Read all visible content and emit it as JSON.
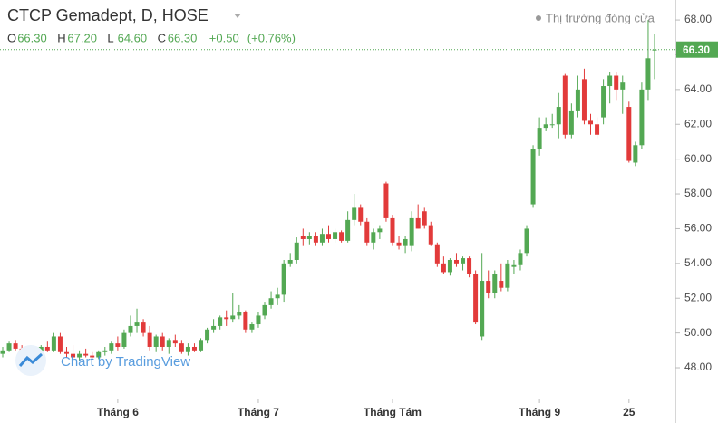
{
  "chart_data": {
    "type": "candlestick",
    "title": "CTCP Gemadept, D, HOSE",
    "ohlc_legend": [
      {
        "key": "O",
        "value": "66.30"
      },
      {
        "key": "H",
        "value": "67.20"
      },
      {
        "key": "L",
        "value": "64.60"
      },
      {
        "key": "C",
        "value": "66.30"
      }
    ],
    "change": "+0.50",
    "change_percent": "(+0.76%)",
    "status": "Thị trường đóng cửa",
    "watermark": "Chart by TradingView",
    "last_price": {
      "value": 66.3,
      "label": "66.30"
    },
    "up_color": "#53a853",
    "down_color": "#e23a3a",
    "ylim": [
      46.23,
      69.15
    ],
    "yticks": [
      {
        "value": 48,
        "label": "48.00"
      },
      {
        "value": 50,
        "label": "50.00"
      },
      {
        "value": 52,
        "label": "52.00"
      },
      {
        "value": 54,
        "label": "54.00"
      },
      {
        "value": 56,
        "label": "56.00"
      },
      {
        "value": 58,
        "label": "58.00"
      },
      {
        "value": 60,
        "label": "60.00"
      },
      {
        "value": 62,
        "label": "62.00"
      },
      {
        "value": 64,
        "label": "64.00"
      },
      {
        "value": 66,
        "label": "66.00"
      },
      {
        "value": 68,
        "label": "68.00"
      }
    ],
    "categories": [
      null,
      null,
      null,
      null,
      null,
      null,
      null,
      null,
      null,
      null,
      null,
      null,
      null,
      null,
      null,
      null,
      null,
      null,
      "Tháng 6",
      null,
      null,
      null,
      null,
      null,
      null,
      null,
      null,
      null,
      null,
      null,
      null,
      null,
      null,
      null,
      null,
      null,
      null,
      null,
      null,
      null,
      "Tháng 7",
      null,
      null,
      null,
      null,
      null,
      null,
      null,
      null,
      null,
      null,
      null,
      null,
      null,
      null,
      null,
      null,
      null,
      null,
      null,
      null,
      "Tháng Tám",
      null,
      null,
      null,
      null,
      null,
      null,
      null,
      null,
      null,
      null,
      null,
      null,
      null,
      null,
      null,
      null,
      null,
      null,
      null,
      null,
      null,
      null,
      "Tháng 9",
      null,
      null,
      null,
      null,
      null,
      null,
      null,
      null,
      null,
      null,
      null,
      null,
      null,
      "25",
      null,
      null,
      null,
      null
    ],
    "candles": [
      [
        48.8,
        49.2,
        48.6,
        49.0
      ],
      [
        49.0,
        49.5,
        48.9,
        49.4
      ],
      [
        49.4,
        49.6,
        49.0,
        49.1
      ],
      [
        49.1,
        49.3,
        48.8,
        49.0
      ],
      [
        49.0,
        49.2,
        48.7,
        48.9
      ],
      [
        48.9,
        49.1,
        48.6,
        48.8
      ],
      [
        48.8,
        49.3,
        48.7,
        49.2
      ],
      [
        49.2,
        49.5,
        48.9,
        49.0
      ],
      [
        49.0,
        50.0,
        48.9,
        49.8
      ],
      [
        49.8,
        50.0,
        48.8,
        48.9
      ],
      [
        48.9,
        49.2,
        48.6,
        48.8
      ],
      [
        48.8,
        49.3,
        48.5,
        48.6
      ],
      [
        48.6,
        49.0,
        48.4,
        48.8
      ],
      [
        48.8,
        49.1,
        48.6,
        48.7
      ],
      [
        48.7,
        48.9,
        48.5,
        48.6
      ],
      [
        48.6,
        49.0,
        48.5,
        48.9
      ],
      [
        48.9,
        49.2,
        48.7,
        49.0
      ],
      [
        49.0,
        49.5,
        48.8,
        49.4
      ],
      [
        49.4,
        49.8,
        49.0,
        49.2
      ],
      [
        49.2,
        50.2,
        49.1,
        50.0
      ],
      [
        50.0,
        51.0,
        49.8,
        50.4
      ],
      [
        50.4,
        51.4,
        50.0,
        50.6
      ],
      [
        50.6,
        50.8,
        49.8,
        50.0
      ],
      [
        50.0,
        50.4,
        49.0,
        49.2
      ],
      [
        49.2,
        49.9,
        48.9,
        49.8
      ],
      [
        49.8,
        50.0,
        49.0,
        49.2
      ],
      [
        49.2,
        49.7,
        48.8,
        49.6
      ],
      [
        49.6,
        49.9,
        49.2,
        49.4
      ],
      [
        49.4,
        49.6,
        48.8,
        48.9
      ],
      [
        48.9,
        49.4,
        48.7,
        49.2
      ],
      [
        49.2,
        49.4,
        48.9,
        49.0
      ],
      [
        49.0,
        49.7,
        48.9,
        49.6
      ],
      [
        49.6,
        50.3,
        49.4,
        50.2
      ],
      [
        50.2,
        50.8,
        50.0,
        50.4
      ],
      [
        50.4,
        51.0,
        50.2,
        50.9
      ],
      [
        50.9,
        51.3,
        50.4,
        50.8
      ],
      [
        50.8,
        52.3,
        50.6,
        51.0
      ],
      [
        51.0,
        51.6,
        50.8,
        51.2
      ],
      [
        51.2,
        51.3,
        50.0,
        50.2
      ],
      [
        50.2,
        50.6,
        50.0,
        50.5
      ],
      [
        50.5,
        51.2,
        50.3,
        51.0
      ],
      [
        51.0,
        51.8,
        50.8,
        51.6
      ],
      [
        51.6,
        52.4,
        51.4,
        52.0
      ],
      [
        52.0,
        52.6,
        51.6,
        52.2
      ],
      [
        52.2,
        54.2,
        51.8,
        54.0
      ],
      [
        54.0,
        54.6,
        53.8,
        54.2
      ],
      [
        54.2,
        55.5,
        54.0,
        55.2
      ],
      [
        55.6,
        56.0,
        55.0,
        55.4
      ],
      [
        55.4,
        55.8,
        55.1,
        55.6
      ],
      [
        55.6,
        55.8,
        55.0,
        55.2
      ],
      [
        55.2,
        56.0,
        55.0,
        55.7
      ],
      [
        55.7,
        56.2,
        55.2,
        55.4
      ],
      [
        55.4,
        56.0,
        55.2,
        55.8
      ],
      [
        55.8,
        55.9,
        55.2,
        55.3
      ],
      [
        55.3,
        57.0,
        55.2,
        56.5
      ],
      [
        56.5,
        58.0,
        56.2,
        57.2
      ],
      [
        57.2,
        57.4,
        56.2,
        56.4
      ],
      [
        56.4,
        56.6,
        55.0,
        55.2
      ],
      [
        55.2,
        56.0,
        54.8,
        55.8
      ],
      [
        55.8,
        56.2,
        55.4,
        56.0
      ],
      [
        58.6,
        58.7,
        56.4,
        56.6
      ],
      [
        56.6,
        56.8,
        55.0,
        55.2
      ],
      [
        55.2,
        55.6,
        54.8,
        55.0
      ],
      [
        55.0,
        55.6,
        54.6,
        55.4
      ],
      [
        55.0,
        57.0,
        54.7,
        56.6
      ],
      [
        56.6,
        57.4,
        56.0,
        56.0
      ],
      [
        57.0,
        57.2,
        56.0,
        56.2
      ],
      [
        56.2,
        56.4,
        55.0,
        55.1
      ],
      [
        55.1,
        55.2,
        53.8,
        54.0
      ],
      [
        54.0,
        54.4,
        53.4,
        53.5
      ],
      [
        53.5,
        54.3,
        53.3,
        54.2
      ],
      [
        54.2,
        54.6,
        53.8,
        54.0
      ],
      [
        54.0,
        54.4,
        53.6,
        54.3
      ],
      [
        54.3,
        54.4,
        53.2,
        53.4
      ],
      [
        53.4,
        53.6,
        50.5,
        50.6
      ],
      [
        49.8,
        54.6,
        49.6,
        53.0
      ],
      [
        53.0,
        53.6,
        52.0,
        52.3
      ],
      [
        52.3,
        53.6,
        52.0,
        53.4
      ],
      [
        53.0,
        54.0,
        52.4,
        52.6
      ],
      [
        52.6,
        54.2,
        52.4,
        54.0
      ],
      [
        53.8,
        54.2,
        53.4,
        53.9
      ],
      [
        53.9,
        54.8,
        53.6,
        54.6
      ],
      [
        54.6,
        56.2,
        54.4,
        56.0
      ],
      [
        57.4,
        60.8,
        57.2,
        60.6
      ],
      [
        60.6,
        62.4,
        60.2,
        61.8
      ],
      [
        61.8,
        62.4,
        61.6,
        62.0
      ],
      [
        62.0,
        62.6,
        61.8,
        62.0
      ],
      [
        62.0,
        63.8,
        61.2,
        63.0
      ],
      [
        64.8,
        64.9,
        61.2,
        61.4
      ],
      [
        61.4,
        63.2,
        61.2,
        62.8
      ],
      [
        62.8,
        64.8,
        62.4,
        64.0
      ],
      [
        64.6,
        65.2,
        62.0,
        62.2
      ],
      [
        62.2,
        62.6,
        61.4,
        62.0
      ],
      [
        62.0,
        62.4,
        61.2,
        61.4
      ],
      [
        62.4,
        64.6,
        62.0,
        64.2
      ],
      [
        64.2,
        65.0,
        63.2,
        64.8
      ],
      [
        64.8,
        65.0,
        63.4,
        64.0
      ],
      [
        64.0,
        64.8,
        62.6,
        64.4
      ],
      [
        63.0,
        63.3,
        59.8,
        59.9
      ],
      [
        59.8,
        61.0,
        59.6,
        60.8
      ],
      [
        60.8,
        64.4,
        60.6,
        64.0
      ],
      [
        64.0,
        68.0,
        63.4,
        65.8
      ],
      [
        66.3,
        67.2,
        64.6,
        66.3
      ]
    ]
  }
}
